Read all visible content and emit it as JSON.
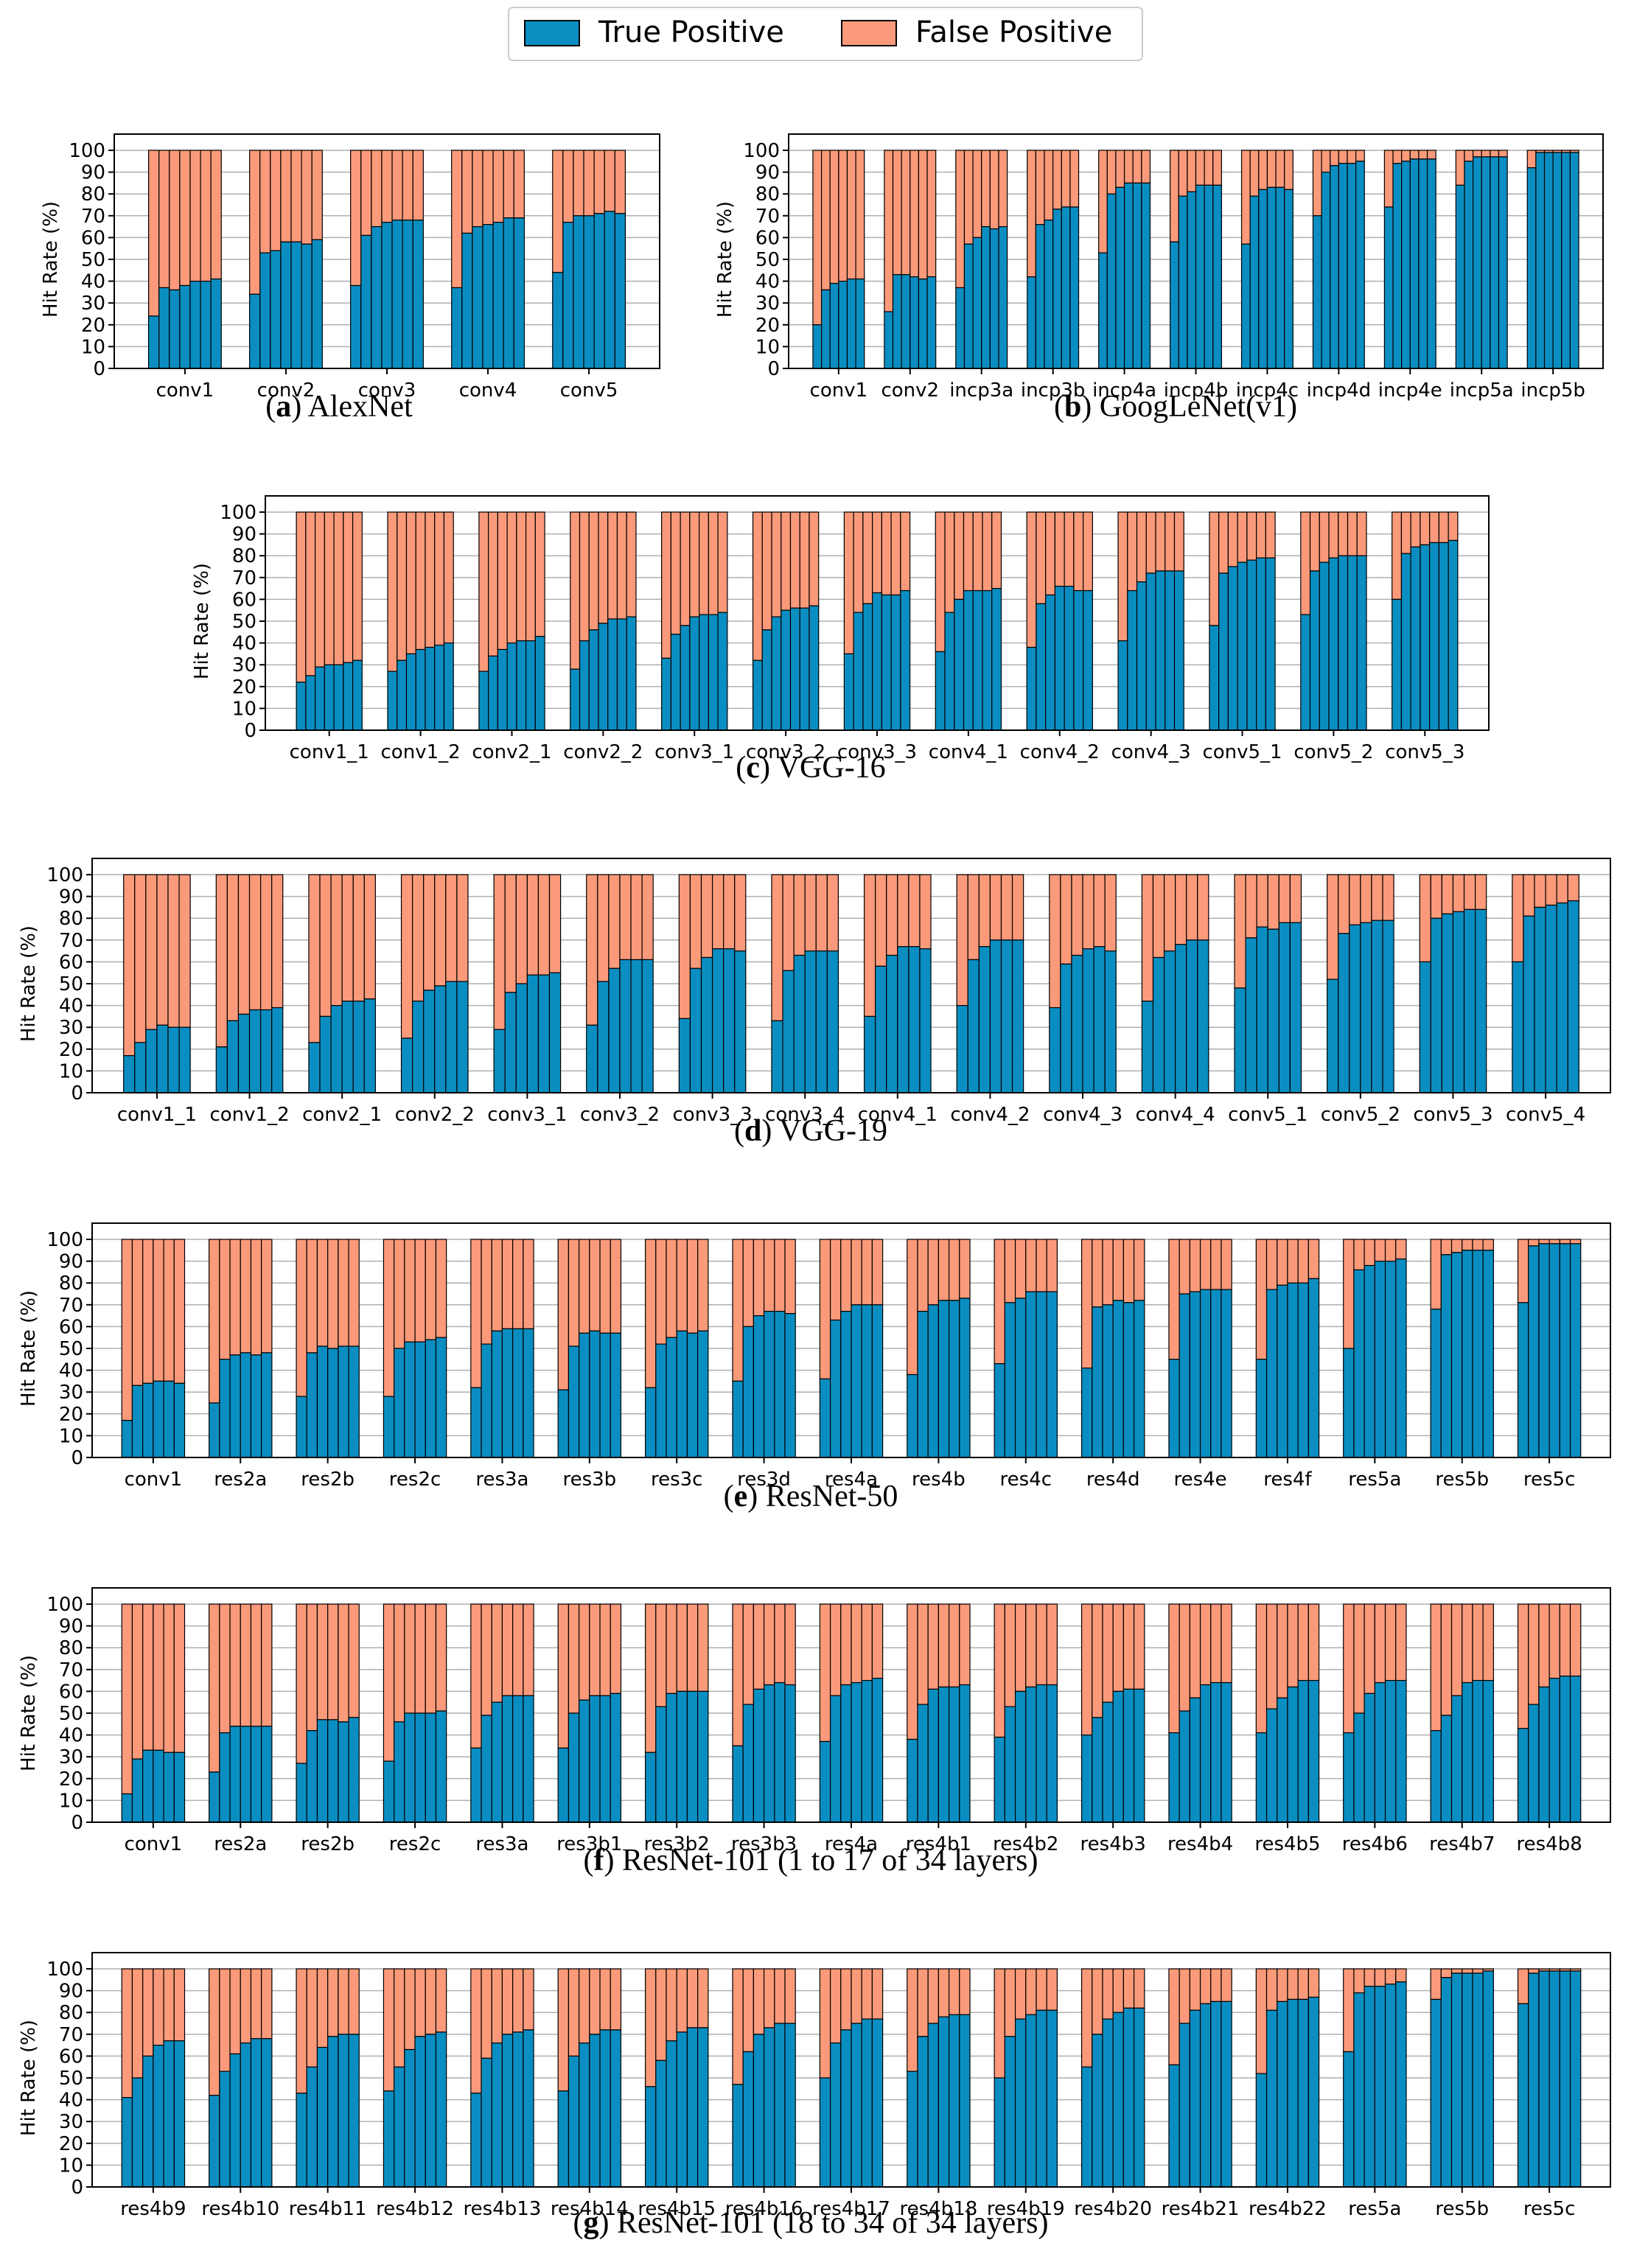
{
  "legend": {
    "entries": [
      {
        "name": "True Positive",
        "color": "#0a8ec2"
      },
      {
        "name": "False Positive",
        "color": "#fa9a7a"
      }
    ]
  },
  "chart_data": [
    {
      "id": "alexnet",
      "type": "bar",
      "stacked": true,
      "caption_letter": "a",
      "caption_text": " AlexNet",
      "ylabel": "Hit Rate (%)",
      "ylim": [
        0,
        100
      ],
      "yticks": [
        0,
        10,
        20,
        30,
        40,
        50,
        60,
        70,
        80,
        90,
        100
      ],
      "categories": [
        "conv1",
        "conv2",
        "conv3",
        "conv4",
        "conv5"
      ],
      "series": [
        {
          "name": "True Positive",
          "values": [
            [
              24,
              37,
              36,
              38,
              40,
              40,
              41
            ],
            [
              34,
              53,
              54,
              58,
              58,
              57,
              59
            ],
            [
              38,
              61,
              65,
              67,
              68,
              68,
              68
            ],
            [
              37,
              62,
              65,
              66,
              67,
              69,
              69
            ],
            [
              44,
              67,
              70,
              70,
              71,
              72,
              71
            ]
          ]
        },
        {
          "name": "False Positive",
          "values": "100 - True Positive"
        }
      ]
    },
    {
      "id": "googlenet",
      "type": "bar",
      "stacked": true,
      "caption_letter": "b",
      "caption_text": " GoogLeNet(v1)",
      "ylabel": "Hit Rate (%)",
      "ylim": [
        0,
        100
      ],
      "yticks": [
        0,
        10,
        20,
        30,
        40,
        50,
        60,
        70,
        80,
        90,
        100
      ],
      "categories": [
        "conv1",
        "conv2",
        "incp3a",
        "incp3b",
        "incp4a",
        "incp4b",
        "incp4c",
        "incp4d",
        "incp4e",
        "incp5a",
        "incp5b"
      ],
      "series": [
        {
          "name": "True Positive",
          "values": [
            [
              20,
              36,
              39,
              40,
              41,
              41
            ],
            [
              26,
              43,
              43,
              42,
              41,
              42
            ],
            [
              37,
              57,
              60,
              65,
              64,
              65
            ],
            [
              42,
              66,
              68,
              73,
              74,
              74
            ],
            [
              53,
              80,
              83,
              85,
              85,
              85
            ],
            [
              58,
              79,
              81,
              84,
              84,
              84
            ],
            [
              57,
              79,
              82,
              83,
              83,
              82
            ],
            [
              70,
              90,
              93,
              94,
              94,
              95
            ],
            [
              74,
              94,
              95,
              96,
              96,
              96
            ],
            [
              84,
              95,
              97,
              97,
              97,
              97
            ],
            [
              92,
              99,
              99,
              99,
              99,
              99
            ]
          ]
        },
        {
          "name": "False Positive",
          "values": "100 - True Positive"
        }
      ]
    },
    {
      "id": "vgg16",
      "type": "bar",
      "stacked": true,
      "caption_letter": "c",
      "caption_text": " VGG-16",
      "ylabel": "Hit Rate (%)",
      "ylim": [
        0,
        100
      ],
      "yticks": [
        0,
        10,
        20,
        30,
        40,
        50,
        60,
        70,
        80,
        90,
        100
      ],
      "categories": [
        "conv1_1",
        "conv1_2",
        "conv2_1",
        "conv2_2",
        "conv3_1",
        "conv3_2",
        "conv3_3",
        "conv4_1",
        "conv4_2",
        "conv4_3",
        "conv5_1",
        "conv5_2",
        "conv5_3"
      ],
      "series": [
        {
          "name": "True Positive",
          "values": [
            [
              22,
              25,
              29,
              30,
              30,
              31,
              32
            ],
            [
              27,
              32,
              35,
              37,
              38,
              39,
              40
            ],
            [
              27,
              34,
              37,
              40,
              41,
              41,
              43
            ],
            [
              28,
              41,
              46,
              49,
              51,
              51,
              52
            ],
            [
              33,
              44,
              48,
              52,
              53,
              53,
              54
            ],
            [
              32,
              46,
              52,
              55,
              56,
              56,
              57
            ],
            [
              35,
              54,
              58,
              63,
              62,
              62,
              64
            ],
            [
              36,
              54,
              60,
              64,
              64,
              64,
              65
            ],
            [
              38,
              58,
              62,
              66,
              66,
              64,
              64
            ],
            [
              41,
              64,
              68,
              72,
              73,
              73,
              73
            ],
            [
              48,
              72,
              75,
              77,
              78,
              79,
              79
            ],
            [
              53,
              73,
              77,
              79,
              80,
              80,
              80
            ],
            [
              60,
              81,
              84,
              85,
              86,
              86,
              87
            ]
          ]
        },
        {
          "name": "False Positive",
          "values": "100 - True Positive"
        }
      ]
    },
    {
      "id": "vgg19",
      "type": "bar",
      "stacked": true,
      "caption_letter": "d",
      "caption_text": " VGG-19",
      "ylabel": "Hit Rate (%)",
      "ylim": [
        0,
        100
      ],
      "yticks": [
        0,
        10,
        20,
        30,
        40,
        50,
        60,
        70,
        80,
        90,
        100
      ],
      "categories": [
        "conv1_1",
        "conv1_2",
        "conv2_1",
        "conv2_2",
        "conv3_1",
        "conv3_2",
        "conv3_3",
        "conv3_4",
        "conv4_1",
        "conv4_2",
        "conv4_3",
        "conv4_4",
        "conv5_1",
        "conv5_2",
        "conv5_3",
        "conv5_4"
      ],
      "series": [
        {
          "name": "True Positive",
          "values": [
            [
              17,
              23,
              29,
              31,
              30,
              30
            ],
            [
              21,
              33,
              36,
              38,
              38,
              39
            ],
            [
              23,
              35,
              40,
              42,
              42,
              43
            ],
            [
              25,
              42,
              47,
              49,
              51,
              51
            ],
            [
              29,
              46,
              50,
              54,
              54,
              55
            ],
            [
              31,
              51,
              57,
              61,
              61,
              61
            ],
            [
              34,
              57,
              62,
              66,
              66,
              65
            ],
            [
              33,
              56,
              63,
              65,
              65,
              65
            ],
            [
              35,
              58,
              63,
              67,
              67,
              66
            ],
            [
              40,
              61,
              67,
              70,
              70,
              70
            ],
            [
              39,
              59,
              63,
              66,
              67,
              65
            ],
            [
              42,
              62,
              65,
              68,
              70,
              70
            ],
            [
              48,
              71,
              76,
              75,
              78,
              78
            ],
            [
              52,
              73,
              77,
              78,
              79,
              79
            ],
            [
              60,
              80,
              82,
              83,
              84,
              84
            ],
            [
              60,
              81,
              85,
              86,
              87,
              88
            ]
          ]
        },
        {
          "name": "False Positive",
          "values": "100 - True Positive"
        }
      ]
    },
    {
      "id": "resnet50",
      "type": "bar",
      "stacked": true,
      "caption_letter": "e",
      "caption_text": " ResNet-50",
      "ylabel": "Hit Rate (%)",
      "ylim": [
        0,
        100
      ],
      "yticks": [
        0,
        10,
        20,
        30,
        40,
        50,
        60,
        70,
        80,
        90,
        100
      ],
      "categories": [
        "conv1",
        "res2a",
        "res2b",
        "res2c",
        "res3a",
        "res3b",
        "res3c",
        "res3d",
        "res4a",
        "res4b",
        "res4c",
        "res4d",
        "res4e",
        "res4f",
        "res5a",
        "res5b",
        "res5c"
      ],
      "series": [
        {
          "name": "True Positive",
          "values": [
            [
              17,
              33,
              34,
              35,
              35,
              34
            ],
            [
              25,
              45,
              47,
              48,
              47,
              48
            ],
            [
              28,
              48,
              51,
              50,
              51,
              51
            ],
            [
              28,
              50,
              53,
              53,
              54,
              55
            ],
            [
              32,
              52,
              58,
              59,
              59,
              59
            ],
            [
              31,
              51,
              57,
              58,
              57,
              57
            ],
            [
              32,
              52,
              55,
              58,
              57,
              58
            ],
            [
              35,
              60,
              65,
              67,
              67,
              66
            ],
            [
              36,
              63,
              67,
              70,
              70,
              70
            ],
            [
              38,
              67,
              70,
              72,
              72,
              73
            ],
            [
              43,
              71,
              73,
              76,
              76,
              76
            ],
            [
              41,
              69,
              70,
              72,
              71,
              72
            ],
            [
              45,
              75,
              76,
              77,
              77,
              77
            ],
            [
              45,
              77,
              79,
              80,
              80,
              82
            ],
            [
              50,
              86,
              88,
              90,
              90,
              91
            ],
            [
              68,
              93,
              94,
              95,
              95,
              95
            ],
            [
              71,
              97,
              98,
              98,
              98,
              98
            ]
          ]
        },
        {
          "name": "False Positive",
          "values": "100 - True Positive"
        }
      ]
    },
    {
      "id": "resnet101a",
      "type": "bar",
      "stacked": true,
      "caption_letter": "f",
      "caption_text": " ResNet-101 (1 to 17 of 34 layers)",
      "ylabel": "Hit Rate (%)",
      "ylim": [
        0,
        100
      ],
      "yticks": [
        0,
        10,
        20,
        30,
        40,
        50,
        60,
        70,
        80,
        90,
        100
      ],
      "categories": [
        "conv1",
        "res2a",
        "res2b",
        "res2c",
        "res3a",
        "res3b1",
        "res3b2",
        "res3b3",
        "res4a",
        "res4b1",
        "res4b2",
        "res4b3",
        "res4b4",
        "res4b5",
        "res4b6",
        "res4b7",
        "res4b8"
      ],
      "series": [
        {
          "name": "True Positive",
          "values": [
            [
              13,
              29,
              33,
              33,
              32,
              32
            ],
            [
              23,
              41,
              44,
              44,
              44,
              44
            ],
            [
              27,
              42,
              47,
              47,
              46,
              48
            ],
            [
              28,
              46,
              50,
              50,
              50,
              51
            ],
            [
              34,
              49,
              55,
              58,
              58,
              58
            ],
            [
              34,
              50,
              56,
              58,
              58,
              59
            ],
            [
              32,
              53,
              59,
              60,
              60,
              60
            ],
            [
              35,
              54,
              61,
              63,
              64,
              63
            ],
            [
              37,
              58,
              63,
              64,
              65,
              66
            ],
            [
              38,
              54,
              61,
              62,
              62,
              63
            ],
            [
              39,
              53,
              60,
              62,
              63,
              63
            ],
            [
              40,
              48,
              55,
              60,
              61,
              61
            ],
            [
              41,
              51,
              57,
              63,
              64,
              64
            ],
            [
              41,
              52,
              57,
              62,
              65,
              65
            ],
            [
              41,
              50,
              59,
              64,
              65,
              65
            ],
            [
              42,
              49,
              58,
              64,
              65,
              65
            ],
            [
              43,
              54,
              62,
              66,
              67,
              67
            ]
          ]
        },
        {
          "name": "False Positive",
          "values": "100 - True Positive"
        }
      ]
    },
    {
      "id": "resnet101b",
      "type": "bar",
      "stacked": true,
      "caption_letter": "g",
      "caption_text": " ResNet-101 (18 to 34 of 34 layers)",
      "ylabel": "Hit Rate (%)",
      "ylim": [
        0,
        100
      ],
      "yticks": [
        0,
        10,
        20,
        30,
        40,
        50,
        60,
        70,
        80,
        90,
        100
      ],
      "categories": [
        "res4b9",
        "res4b10",
        "res4b11",
        "res4b12",
        "res4b13",
        "res4b14",
        "res4b15",
        "res4b16",
        "res4b17",
        "res4b18",
        "res4b19",
        "res4b20",
        "res4b21",
        "res4b22",
        "res5a",
        "res5b",
        "res5c"
      ],
      "series": [
        {
          "name": "True Positive",
          "values": [
            [
              41,
              50,
              60,
              65,
              67,
              67
            ],
            [
              42,
              53,
              61,
              66,
              68,
              68
            ],
            [
              43,
              55,
              64,
              69,
              70,
              70
            ],
            [
              44,
              55,
              63,
              69,
              70,
              71
            ],
            [
              43,
              59,
              66,
              70,
              71,
              72
            ],
            [
              44,
              60,
              66,
              70,
              72,
              72
            ],
            [
              46,
              58,
              67,
              71,
              73,
              73
            ],
            [
              47,
              62,
              70,
              73,
              75,
              75
            ],
            [
              50,
              66,
              72,
              75,
              77,
              77
            ],
            [
              53,
              69,
              75,
              78,
              79,
              79
            ],
            [
              50,
              69,
              77,
              79,
              81,
              81
            ],
            [
              55,
              70,
              77,
              80,
              82,
              82
            ],
            [
              56,
              75,
              81,
              84,
              85,
              85
            ],
            [
              52,
              81,
              85,
              86,
              86,
              87
            ],
            [
              62,
              89,
              92,
              92,
              93,
              94
            ],
            [
              86,
              96,
              98,
              98,
              98,
              99
            ],
            [
              84,
              98,
              99,
              99,
              99,
              99
            ]
          ]
        },
        {
          "name": "False Positive",
          "values": "100 - True Positive"
        }
      ]
    }
  ]
}
